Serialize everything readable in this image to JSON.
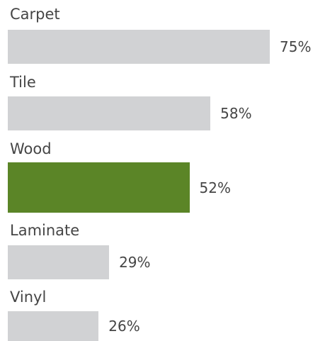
{
  "chart_data": {
    "type": "bar",
    "orientation": "horizontal",
    "categories": [
      "Carpet",
      "Tile",
      "Wood",
      "Laminate",
      "Vinyl"
    ],
    "values": [
      75,
      58,
      52,
      29,
      26
    ],
    "value_labels": [
      "75%",
      "58%",
      "52%",
      "29%",
      "26%"
    ],
    "unit": "%",
    "highlight_category": "Wood",
    "xlim": [
      0,
      100
    ],
    "grid": false,
    "legend": "none"
  },
  "colors": {
    "bar_default": "#d1d2d4",
    "bar_highlight": "#5b8527",
    "label_text": "#454545"
  }
}
